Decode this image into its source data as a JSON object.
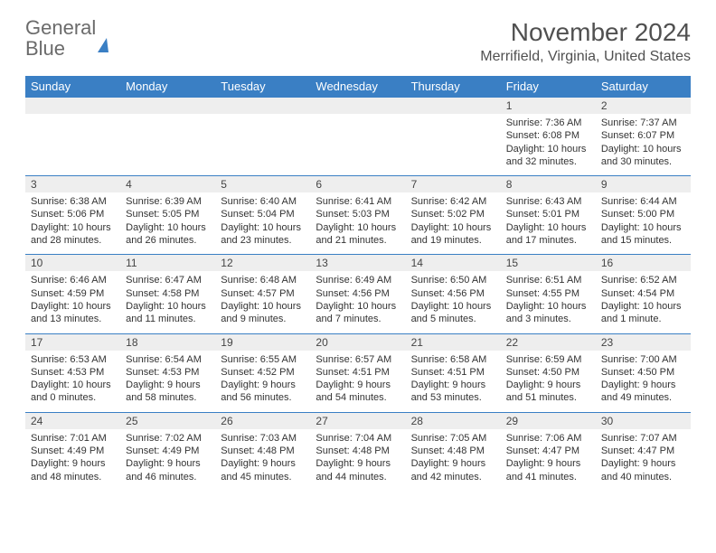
{
  "brand": {
    "part1": "General",
    "part2": "Blue"
  },
  "title": "November 2024",
  "location": "Merrifield, Virginia, United States",
  "dow": [
    "Sunday",
    "Monday",
    "Tuesday",
    "Wednesday",
    "Thursday",
    "Friday",
    "Saturday"
  ],
  "colors": {
    "header_bg": "#3a7fc4",
    "header_fg": "#ffffff",
    "daynum_bg": "#eeeeee",
    "rule": "#3a7fc4",
    "text": "#333333",
    "title": "#505050",
    "logo_gray": "#6b6b6b"
  },
  "weeks": [
    {
      "nums": [
        "",
        "",
        "",
        "",
        "",
        "1",
        "2"
      ],
      "cells": [
        null,
        null,
        null,
        null,
        null,
        {
          "sr": "Sunrise: 7:36 AM",
          "ss": "Sunset: 6:08 PM",
          "d1": "Daylight: 10 hours",
          "d2": "and 32 minutes."
        },
        {
          "sr": "Sunrise: 7:37 AM",
          "ss": "Sunset: 6:07 PM",
          "d1": "Daylight: 10 hours",
          "d2": "and 30 minutes."
        }
      ]
    },
    {
      "nums": [
        "3",
        "4",
        "5",
        "6",
        "7",
        "8",
        "9"
      ],
      "cells": [
        {
          "sr": "Sunrise: 6:38 AM",
          "ss": "Sunset: 5:06 PM",
          "d1": "Daylight: 10 hours",
          "d2": "and 28 minutes."
        },
        {
          "sr": "Sunrise: 6:39 AM",
          "ss": "Sunset: 5:05 PM",
          "d1": "Daylight: 10 hours",
          "d2": "and 26 minutes."
        },
        {
          "sr": "Sunrise: 6:40 AM",
          "ss": "Sunset: 5:04 PM",
          "d1": "Daylight: 10 hours",
          "d2": "and 23 minutes."
        },
        {
          "sr": "Sunrise: 6:41 AM",
          "ss": "Sunset: 5:03 PM",
          "d1": "Daylight: 10 hours",
          "d2": "and 21 minutes."
        },
        {
          "sr": "Sunrise: 6:42 AM",
          "ss": "Sunset: 5:02 PM",
          "d1": "Daylight: 10 hours",
          "d2": "and 19 minutes."
        },
        {
          "sr": "Sunrise: 6:43 AM",
          "ss": "Sunset: 5:01 PM",
          "d1": "Daylight: 10 hours",
          "d2": "and 17 minutes."
        },
        {
          "sr": "Sunrise: 6:44 AM",
          "ss": "Sunset: 5:00 PM",
          "d1": "Daylight: 10 hours",
          "d2": "and 15 minutes."
        }
      ]
    },
    {
      "nums": [
        "10",
        "11",
        "12",
        "13",
        "14",
        "15",
        "16"
      ],
      "cells": [
        {
          "sr": "Sunrise: 6:46 AM",
          "ss": "Sunset: 4:59 PM",
          "d1": "Daylight: 10 hours",
          "d2": "and 13 minutes."
        },
        {
          "sr": "Sunrise: 6:47 AM",
          "ss": "Sunset: 4:58 PM",
          "d1": "Daylight: 10 hours",
          "d2": "and 11 minutes."
        },
        {
          "sr": "Sunrise: 6:48 AM",
          "ss": "Sunset: 4:57 PM",
          "d1": "Daylight: 10 hours",
          "d2": "and 9 minutes."
        },
        {
          "sr": "Sunrise: 6:49 AM",
          "ss": "Sunset: 4:56 PM",
          "d1": "Daylight: 10 hours",
          "d2": "and 7 minutes."
        },
        {
          "sr": "Sunrise: 6:50 AM",
          "ss": "Sunset: 4:56 PM",
          "d1": "Daylight: 10 hours",
          "d2": "and 5 minutes."
        },
        {
          "sr": "Sunrise: 6:51 AM",
          "ss": "Sunset: 4:55 PM",
          "d1": "Daylight: 10 hours",
          "d2": "and 3 minutes."
        },
        {
          "sr": "Sunrise: 6:52 AM",
          "ss": "Sunset: 4:54 PM",
          "d1": "Daylight: 10 hours",
          "d2": "and 1 minute."
        }
      ]
    },
    {
      "nums": [
        "17",
        "18",
        "19",
        "20",
        "21",
        "22",
        "23"
      ],
      "cells": [
        {
          "sr": "Sunrise: 6:53 AM",
          "ss": "Sunset: 4:53 PM",
          "d1": "Daylight: 10 hours",
          "d2": "and 0 minutes."
        },
        {
          "sr": "Sunrise: 6:54 AM",
          "ss": "Sunset: 4:53 PM",
          "d1": "Daylight: 9 hours",
          "d2": "and 58 minutes."
        },
        {
          "sr": "Sunrise: 6:55 AM",
          "ss": "Sunset: 4:52 PM",
          "d1": "Daylight: 9 hours",
          "d2": "and 56 minutes."
        },
        {
          "sr": "Sunrise: 6:57 AM",
          "ss": "Sunset: 4:51 PM",
          "d1": "Daylight: 9 hours",
          "d2": "and 54 minutes."
        },
        {
          "sr": "Sunrise: 6:58 AM",
          "ss": "Sunset: 4:51 PM",
          "d1": "Daylight: 9 hours",
          "d2": "and 53 minutes."
        },
        {
          "sr": "Sunrise: 6:59 AM",
          "ss": "Sunset: 4:50 PM",
          "d1": "Daylight: 9 hours",
          "d2": "and 51 minutes."
        },
        {
          "sr": "Sunrise: 7:00 AM",
          "ss": "Sunset: 4:50 PM",
          "d1": "Daylight: 9 hours",
          "d2": "and 49 minutes."
        }
      ]
    },
    {
      "nums": [
        "24",
        "25",
        "26",
        "27",
        "28",
        "29",
        "30"
      ],
      "cells": [
        {
          "sr": "Sunrise: 7:01 AM",
          "ss": "Sunset: 4:49 PM",
          "d1": "Daylight: 9 hours",
          "d2": "and 48 minutes."
        },
        {
          "sr": "Sunrise: 7:02 AM",
          "ss": "Sunset: 4:49 PM",
          "d1": "Daylight: 9 hours",
          "d2": "and 46 minutes."
        },
        {
          "sr": "Sunrise: 7:03 AM",
          "ss": "Sunset: 4:48 PM",
          "d1": "Daylight: 9 hours",
          "d2": "and 45 minutes."
        },
        {
          "sr": "Sunrise: 7:04 AM",
          "ss": "Sunset: 4:48 PM",
          "d1": "Daylight: 9 hours",
          "d2": "and 44 minutes."
        },
        {
          "sr": "Sunrise: 7:05 AM",
          "ss": "Sunset: 4:48 PM",
          "d1": "Daylight: 9 hours",
          "d2": "and 42 minutes."
        },
        {
          "sr": "Sunrise: 7:06 AM",
          "ss": "Sunset: 4:47 PM",
          "d1": "Daylight: 9 hours",
          "d2": "and 41 minutes."
        },
        {
          "sr": "Sunrise: 7:07 AM",
          "ss": "Sunset: 4:47 PM",
          "d1": "Daylight: 9 hours",
          "d2": "and 40 minutes."
        }
      ]
    }
  ]
}
